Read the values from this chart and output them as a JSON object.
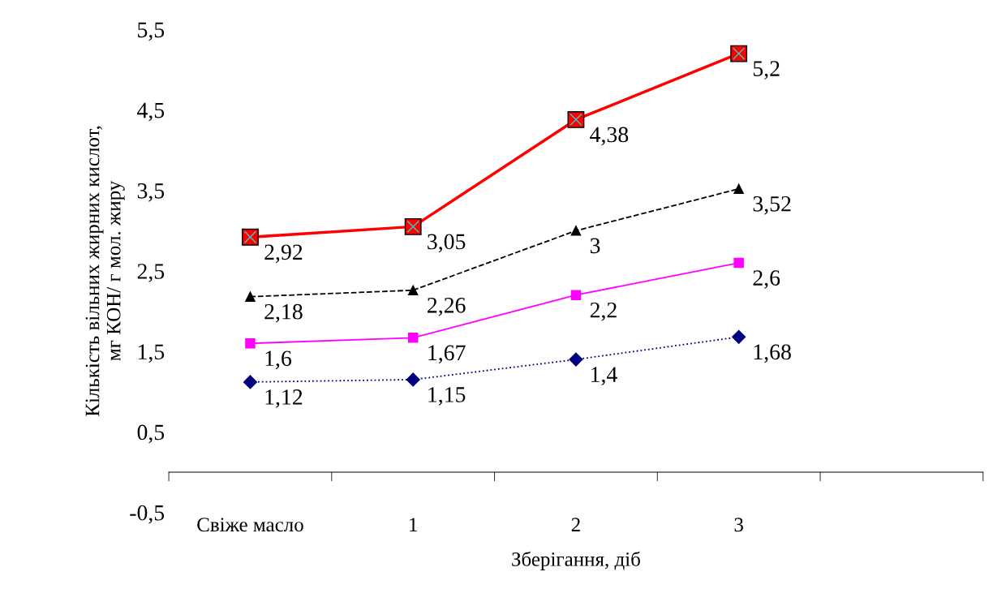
{
  "chart_data": {
    "type": "line",
    "xlabel": "Зберігання, діб",
    "ylabel": "Кількість вільних жирних кислот,\nмг КОН/ г мол. жиру",
    "categories": [
      "Свіже масло",
      "1",
      "2",
      "3",
      null
    ],
    "ylim": [
      -0.5,
      5.5
    ],
    "yticks": [
      {
        "value": -0.5,
        "label": "-0,5"
      },
      {
        "value": 0.5,
        "label": "0,5"
      },
      {
        "value": 1.5,
        "label": "1,5"
      },
      {
        "value": 2.5,
        "label": "2,5"
      },
      {
        "value": 3.5,
        "label": "3,5"
      },
      {
        "value": 4.5,
        "label": "4,5"
      },
      {
        "value": 5.5,
        "label": "5,5"
      }
    ],
    "grid": false,
    "legend": false,
    "series": [
      {
        "color": "#ff0000",
        "marker": "square",
        "line_style": "solid",
        "values": [
          2.92,
          3.05,
          4.38,
          5.2,
          null
        ],
        "value_labels": [
          "2,92",
          "3,05",
          "4,38",
          "5,2",
          null
        ]
      },
      {
        "color": "#000000",
        "marker": "triangle",
        "line_style": "dashed",
        "values": [
          2.18,
          2.26,
          3,
          3.52,
          null
        ],
        "value_labels": [
          "2,18",
          "2,26",
          "3",
          "3,52",
          null
        ]
      },
      {
        "color": "#ff00ff",
        "marker": "square",
        "line_style": "solid",
        "values": [
          1.6,
          1.67,
          2.2,
          2.6,
          null
        ],
        "value_labels": [
          "1,6",
          "1,67",
          "2,2",
          "2,6",
          null
        ]
      },
      {
        "color": "#000080",
        "marker": "diamond",
        "line_style": "dotted",
        "values": [
          1.12,
          1.15,
          1.4,
          1.68,
          null
        ],
        "value_labels": [
          "1,12",
          "1,15",
          "1,4",
          "1,68",
          null
        ]
      }
    ]
  }
}
